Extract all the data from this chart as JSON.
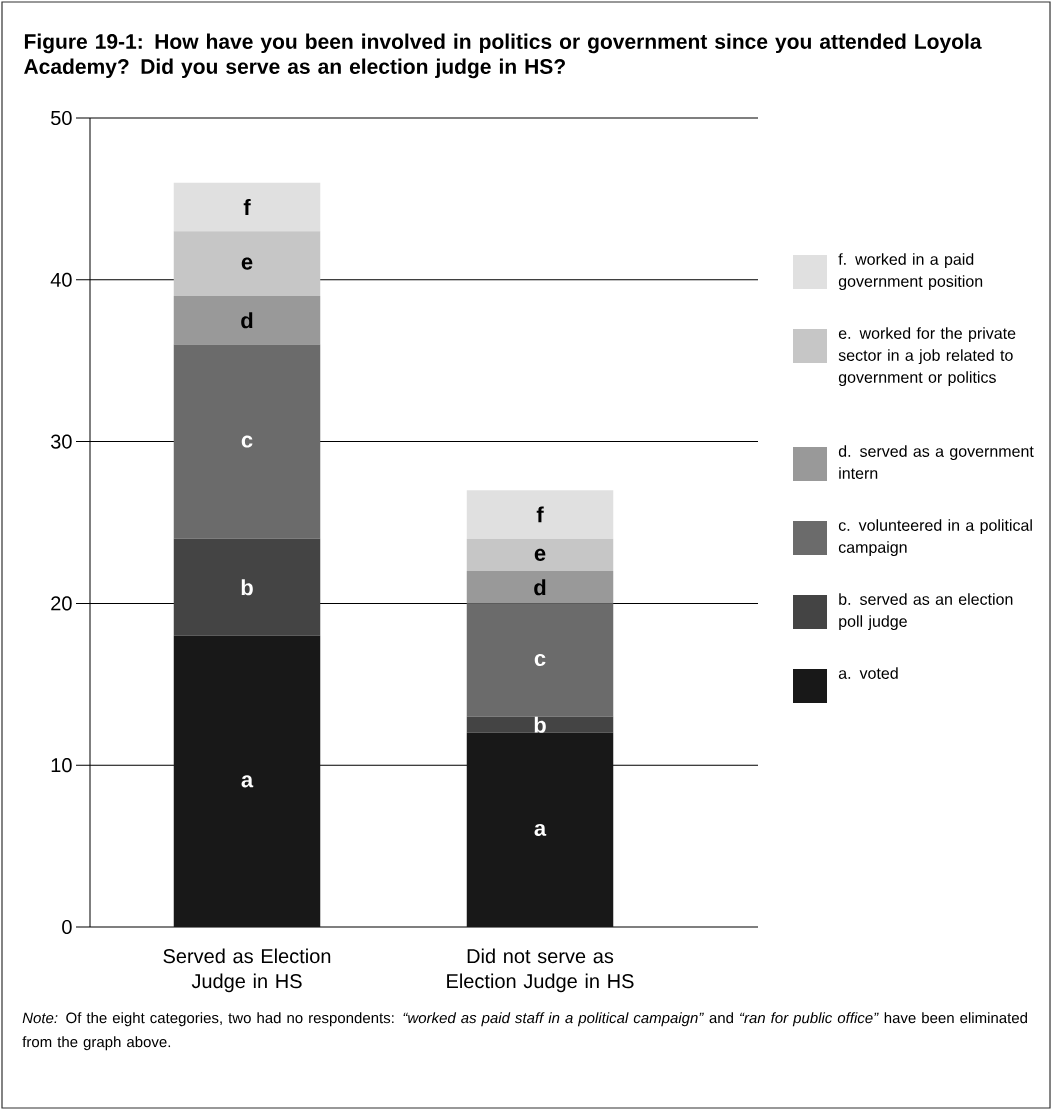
{
  "chart_data": {
    "type": "bar",
    "stacked": true,
    "title": "**Figure 19-1:  How have you been involved in politics or government since you attended Loyola Academy? Did you serve as an election judge in HS?**",
    "categories": [
      "Served as Election Judge in HS",
      "Did not serve as Election Judge in HS"
    ],
    "series": [
      {
        "name": "a.  voted",
        "color": "#181818",
        "values": [
          18,
          12
        ],
        "value_labels": [
          "a",
          "a"
        ]
      },
      {
        "name": "b.  served as an election poll judge",
        "color": "#444444",
        "values": [
          6,
          1
        ],
        "value_labels": [
          "b",
          "b"
        ]
      },
      {
        "name": "c.  volunteered in a political campaign",
        "color": "#6b6b6b",
        "values": [
          12,
          7
        ],
        "value_labels": [
          "c",
          "c"
        ]
      },
      {
        "name": "d.  served as a government intern",
        "color": "#999999",
        "values": [
          3,
          2
        ],
        "value_labels": [
          "d",
          "d"
        ]
      },
      {
        "name": "e.  worked for the private sector in a job related to government or politics",
        "color": "#c6c6c6",
        "values": [
          4,
          2
        ],
        "value_labels": [
          "e",
          "e"
        ]
      },
      {
        "name": "f.  worked in a paid government position",
        "color": "#e0e0e0",
        "values": [
          3,
          3
        ],
        "value_labels": [
          "f",
          "f"
        ]
      }
    ],
    "ylim": [
      0,
      50
    ],
    "yticks": [
      0,
      10,
      20,
      30,
      40,
      50
    ],
    "grid": "y",
    "legend": "right",
    "annotations": [
      "*Note:* Of the eight categories, two had no respondents: *“worked as paid staff in a political campaign”* and *“ran for public office”* have been eliminated from the graph above."
    ]
  }
}
